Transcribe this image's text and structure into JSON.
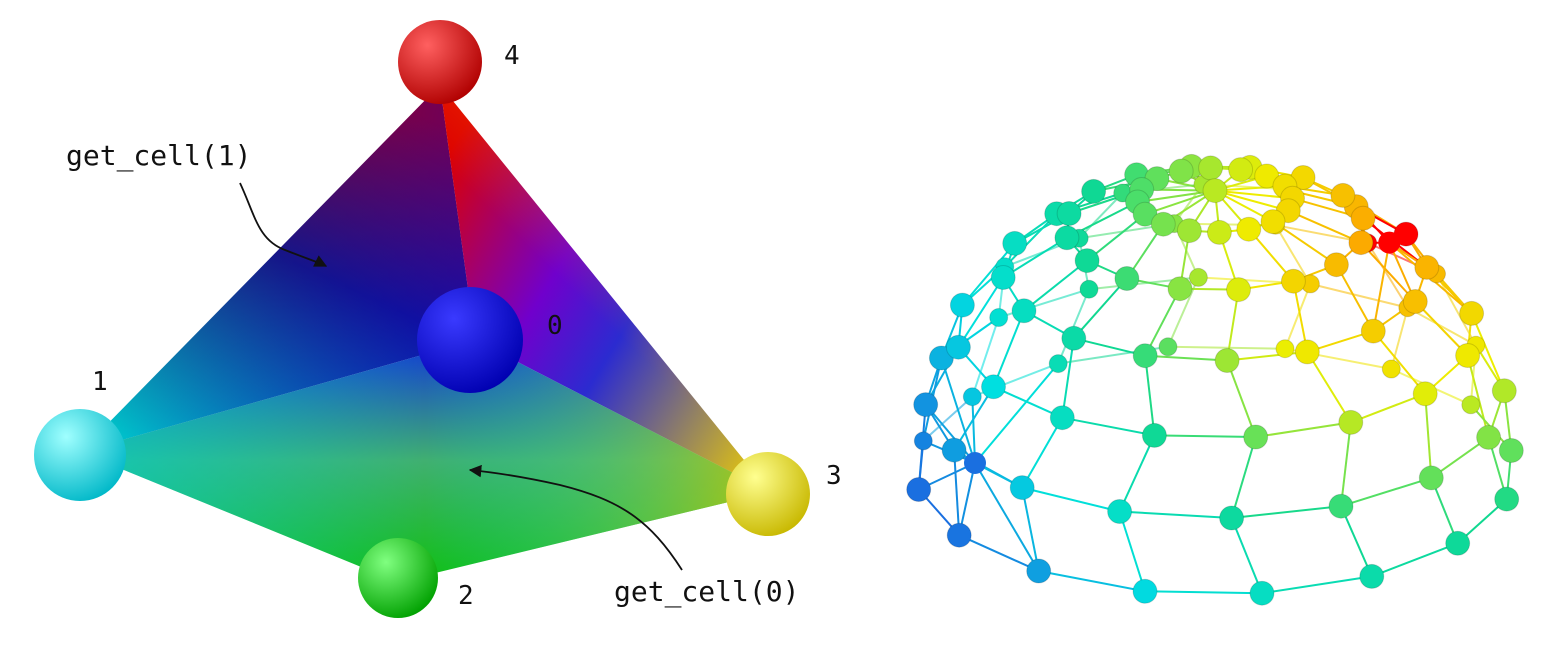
{
  "left_figure": {
    "vertices": [
      {
        "id": "0",
        "label": "0",
        "color": "#0000ee"
      },
      {
        "id": "1",
        "label": "1",
        "color": "#00e6f0"
      },
      {
        "id": "2",
        "label": "2",
        "color": "#00e000"
      },
      {
        "id": "3",
        "label": "3",
        "color": "#eeee00"
      },
      {
        "id": "4",
        "label": "4",
        "color": "#ee0000"
      }
    ],
    "annotations": [
      {
        "id": "cell1",
        "text": "get_cell(1)"
      },
      {
        "id": "cell0",
        "text": "get_cell(0)"
      }
    ]
  },
  "right_figure": {
    "description": "hemisphere wireframe mesh, vertices colored by graph distance",
    "colors": {
      "near": "#ff0000",
      "mid": "#eeee00",
      "far": "#00e0e0",
      "farthest": "#1a6fe0"
    }
  }
}
